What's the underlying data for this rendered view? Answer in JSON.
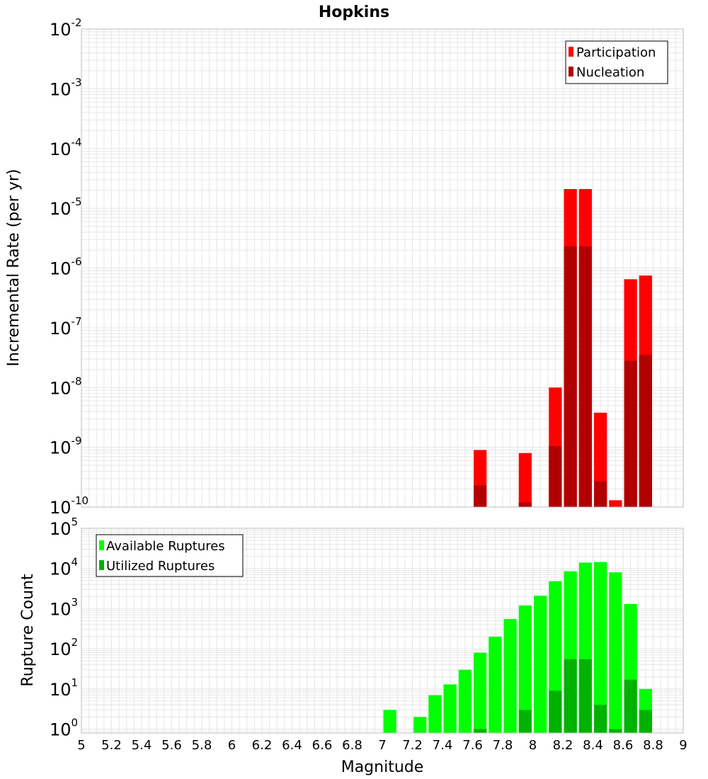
{
  "chart_data": [
    {
      "type": "bar",
      "title": "Hopkins",
      "ylabel": "Incremental Rate (per yr)",
      "xlabel": "",
      "yscale": "log",
      "ylim": [
        1e-10,
        0.01
      ],
      "xlim": [
        5,
        9
      ],
      "grid": true,
      "legend_position": "top-right",
      "bin_width": 0.1,
      "x": [
        7.65,
        7.95,
        8.15,
        8.25,
        8.35,
        8.45,
        8.55,
        8.65,
        8.75
      ],
      "series": [
        {
          "name": "Participation",
          "color": "#ff0000",
          "values": [
            9e-10,
            8e-10,
            1e-08,
            2.1e-05,
            2.1e-05,
            3.8e-09,
            1.3e-10,
            6.5e-07,
            7.5e-07
          ]
        },
        {
          "name": "Nucleation",
          "color": "#b20000",
          "values": [
            2.3e-10,
            1.2e-10,
            1.05e-09,
            2.3e-06,
            2.3e-06,
            2.7e-10,
            null,
            2.8e-08,
            3.5e-08
          ]
        }
      ]
    },
    {
      "type": "bar",
      "title": "",
      "ylabel": "Rupture Count",
      "xlabel": "Magnitude",
      "yscale": "log",
      "ylim": [
        0.8,
        100000
      ],
      "xlim": [
        5,
        9
      ],
      "grid": true,
      "legend_position": "top-left",
      "bin_width": 0.1,
      "x": [
        7.05,
        7.25,
        7.35,
        7.45,
        7.55,
        7.65,
        7.75,
        7.85,
        7.95,
        8.05,
        8.15,
        8.25,
        8.35,
        8.45,
        8.55,
        8.65,
        8.75
      ],
      "series": [
        {
          "name": "Available Ruptures",
          "color": "#00ff00",
          "values": [
            3,
            2,
            7,
            13,
            30,
            80,
            200,
            550,
            1200,
            2100,
            4800,
            8500,
            14000,
            14500,
            8000,
            1300,
            10
          ]
        },
        {
          "name": "Utilized Ruptures",
          "color": "#00b200",
          "values": [
            null,
            null,
            null,
            null,
            null,
            1,
            null,
            null,
            3,
            null,
            9,
            55,
            55,
            4,
            1,
            17,
            3
          ]
        }
      ]
    }
  ],
  "x_ticks": [
    "5",
    "5.2",
    "5.4",
    "5.6",
    "5.8",
    "6",
    "6.2",
    "6.4",
    "6.6",
    "6.8",
    "7",
    "7.2",
    "7.4",
    "7.6",
    "7.8",
    "8",
    "8.2",
    "8.4",
    "8.6",
    "8.8",
    "9"
  ],
  "top_y_ticks": [
    "-2",
    "-3",
    "-4",
    "-5",
    "-6",
    "-7",
    "-8",
    "-9",
    "-10"
  ],
  "bottom_y_ticks": [
    "5",
    "4",
    "3",
    "2",
    "1",
    "0"
  ],
  "y_tick_base": "10",
  "grid_color": "#e6e6e6",
  "frame_color": "#bbbbbb"
}
